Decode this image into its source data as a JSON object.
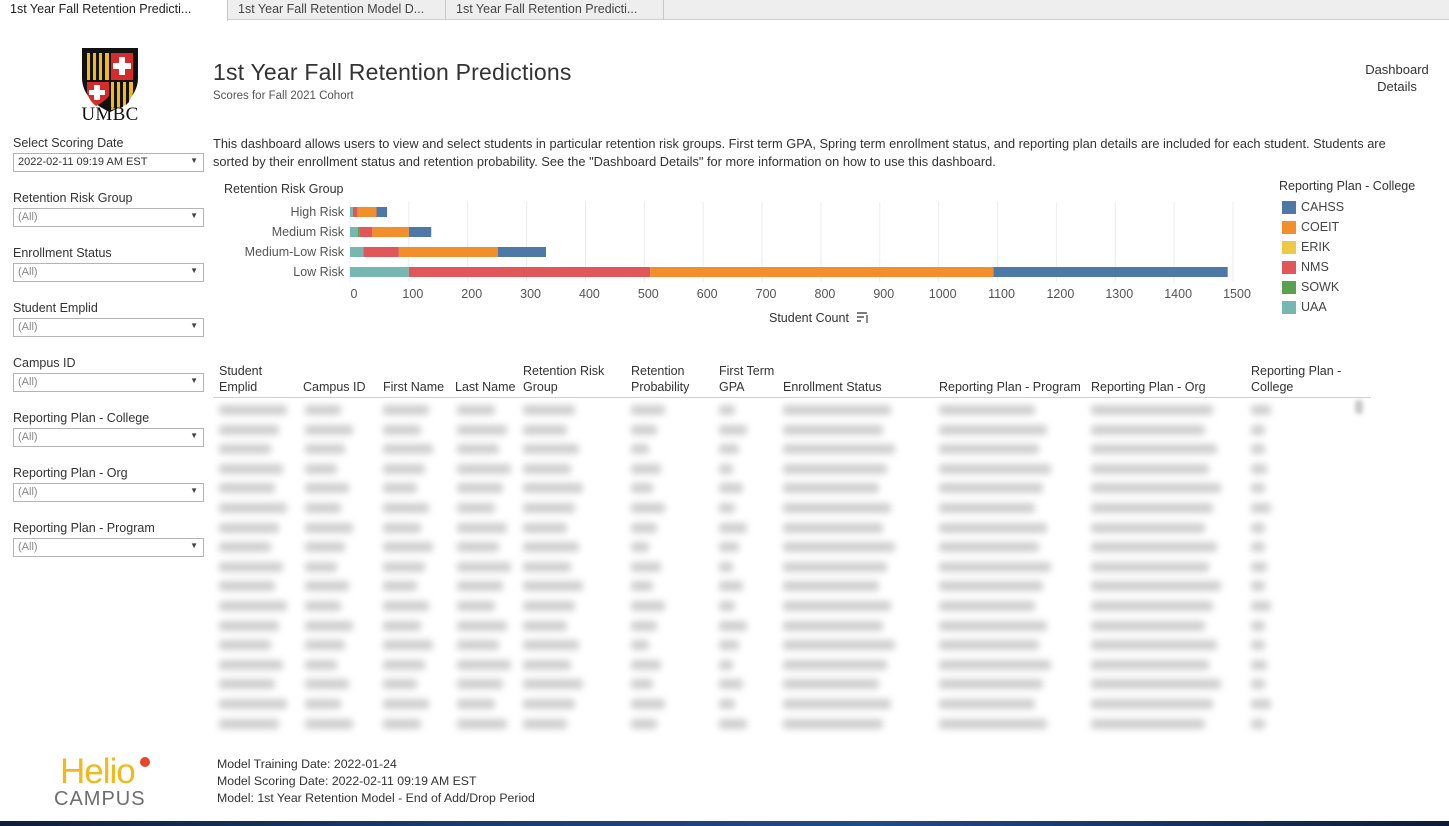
{
  "tabs": [
    {
      "label": "1st Year Fall Retention Predicti...",
      "active": true
    },
    {
      "label": "1st Year Fall Retention Model D...",
      "active": false
    },
    {
      "label": "1st Year Fall Retention Predicti...",
      "active": false
    }
  ],
  "logo": {
    "text": "UMBC"
  },
  "header": {
    "title": "1st Year Fall Retention Predictions",
    "subtitle": "Scores for Fall 2021 Cohort",
    "details_line1": "Dashboard",
    "details_line2": "Details"
  },
  "description": "This dashboard allows users to view and select students in particular retention risk groups. First term GPA, Spring term enrollment status, and reporting plan details are included for each student. Students are sorted by their enrollment status and retention probability. See the \"Dashboard Details\" for more information on how to use this dashboard.",
  "filters": [
    {
      "label": "Select Scoring Date",
      "value": "2022-02-11 09:19 AM EST"
    },
    {
      "label": "Retention Risk Group",
      "value": "(All)"
    },
    {
      "label": "Enrollment Status",
      "value": "(All)"
    },
    {
      "label": "Student Emplid",
      "value": "(All)"
    },
    {
      "label": "Campus ID",
      "value": "(All)"
    },
    {
      "label": "Reporting Plan - College",
      "value": "(All)"
    },
    {
      "label": "Reporting Plan - Org",
      "value": "(All)"
    },
    {
      "label": "Reporting Plan - Program",
      "value": "(All)"
    }
  ],
  "chart_data": {
    "type": "bar",
    "orientation": "horizontal",
    "stacked": true,
    "category_header": "Retention Risk Group",
    "categories": [
      "High Risk",
      "Medium Risk",
      "Medium-Low Risk",
      "Low Risk"
    ],
    "xlabel": "Student Count",
    "xlim": [
      0,
      1500
    ],
    "xticks": [
      0,
      100,
      200,
      300,
      400,
      500,
      600,
      700,
      800,
      900,
      1000,
      1100,
      1200,
      1300,
      1400,
      1500
    ],
    "grid": true,
    "series": [
      {
        "name": "UAA",
        "color": "#76b7b2",
        "values": [
          5,
          13,
          23,
          100
        ]
      },
      {
        "name": "SOWK",
        "color": "#59a14f",
        "values": [
          0,
          3,
          0,
          0
        ]
      },
      {
        "name": "NMS",
        "color": "#e15759",
        "values": [
          8,
          22,
          60,
          410
        ]
      },
      {
        "name": "ERIK",
        "color": "#edc948",
        "values": [
          0,
          0,
          0,
          0
        ]
      },
      {
        "name": "COEIT",
        "color": "#f28e2b",
        "values": [
          32,
          62,
          168,
          583
        ]
      },
      {
        "name": "CAHSS",
        "color": "#4e79a7",
        "values": [
          18,
          38,
          82,
          398
        ]
      }
    ]
  },
  "legend": {
    "title": "Reporting Plan - College",
    "items": [
      {
        "label": "CAHSS",
        "color": "#4e79a7"
      },
      {
        "label": "COEIT",
        "color": "#f28e2b"
      },
      {
        "label": "ERIK",
        "color": "#edc948"
      },
      {
        "label": "NMS",
        "color": "#e15759"
      },
      {
        "label": "SOWK",
        "color": "#59a14f"
      },
      {
        "label": "UAA",
        "color": "#76b7b2"
      }
    ]
  },
  "table": {
    "columns": [
      {
        "line1": "Student",
        "line2": "Emplid"
      },
      {
        "line1": "",
        "line2": "Campus ID"
      },
      {
        "line1": "",
        "line2": "First Name"
      },
      {
        "line1": "",
        "line2": "Last Name"
      },
      {
        "line1": "Retention Risk",
        "line2": "Group"
      },
      {
        "line1": "Retention",
        "line2": "Probability"
      },
      {
        "line1": "First Term",
        "line2": "GPA"
      },
      {
        "line1": "",
        "line2": "Enrollment Status"
      },
      {
        "line1": "",
        "line2": "Reporting Plan - Program"
      },
      {
        "line1": "",
        "line2": "Reporting Plan - Org"
      },
      {
        "line1": "Reporting Plan -",
        "line2": "College"
      }
    ],
    "blurred_rows": 17
  },
  "footer": {
    "training": "Model Training Date: 2022-01-24",
    "scoring": "Model Scoring Date: 2022-02-11 09:19 AM EST",
    "model": "Model: 1st Year Retention Model -  End of Add/Drop Period"
  },
  "brand": {
    "helio_top": "Helio",
    "helio_bottom": "CAMPUS"
  }
}
